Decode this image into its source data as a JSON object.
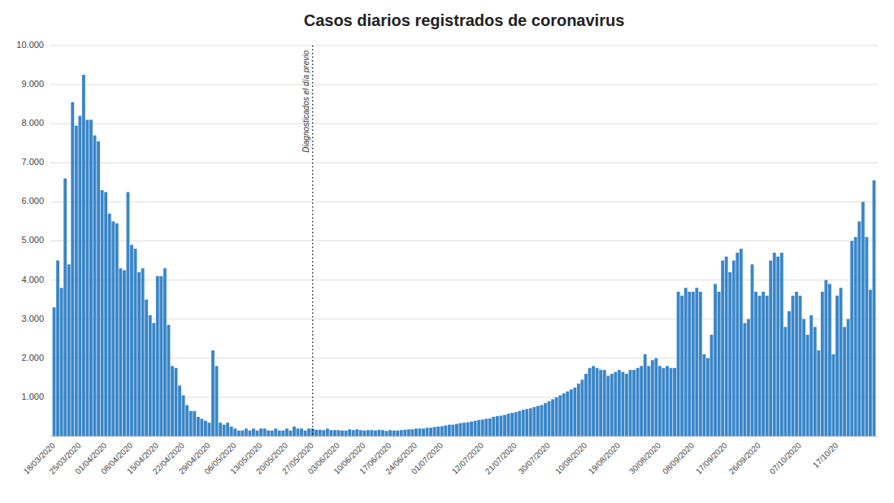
{
  "chart_data": {
    "type": "bar",
    "title": "Casos diarios registrados de coronavirus",
    "color": "#3a86c8",
    "grid": true,
    "ylim": [
      0,
      10000
    ],
    "yticks": [
      {
        "value": 1000,
        "label": "1.000"
      },
      {
        "value": 2000,
        "label": "2.000"
      },
      {
        "value": 3000,
        "label": "3.000"
      },
      {
        "value": 4000,
        "label": "4.000"
      },
      {
        "value": 5000,
        "label": "5.000"
      },
      {
        "value": 6000,
        "label": "6.000"
      },
      {
        "value": 7000,
        "label": "7.000"
      },
      {
        "value": 8000,
        "label": "8.000"
      },
      {
        "value": 9000,
        "label": "9.000"
      },
      {
        "value": 10000,
        "label": "10.000"
      }
    ],
    "annotations": [
      {
        "text": "Diagnosticados el día previo",
        "x": "27/05/2020"
      }
    ],
    "categories": [
      "18/03/2020",
      null,
      null,
      null,
      null,
      null,
      null,
      "25/03/2020",
      null,
      null,
      null,
      null,
      null,
      null,
      "01/04/2020",
      null,
      null,
      null,
      null,
      null,
      null,
      "08/04/2020",
      null,
      null,
      null,
      null,
      null,
      null,
      "15/04/2020",
      null,
      null,
      null,
      null,
      null,
      null,
      "22/04/2020",
      null,
      null,
      null,
      null,
      null,
      null,
      "29/04/2020",
      null,
      null,
      null,
      null,
      null,
      null,
      "06/05/2020",
      null,
      null,
      null,
      null,
      null,
      null,
      "13/05/2020",
      null,
      null,
      null,
      null,
      null,
      null,
      "20/05/2020",
      null,
      null,
      null,
      null,
      null,
      null,
      "27/05/2020",
      null,
      null,
      null,
      null,
      null,
      null,
      "03/06/2020",
      null,
      null,
      null,
      null,
      null,
      null,
      "10/06/2020",
      null,
      null,
      null,
      null,
      null,
      null,
      "17/06/2020",
      null,
      null,
      null,
      null,
      null,
      null,
      "24/06/2020",
      null,
      null,
      null,
      null,
      null,
      null,
      "01/07/2020",
      null,
      null,
      null,
      null,
      null,
      null,
      null,
      null,
      null,
      null,
      "12/07/2020",
      null,
      null,
      null,
      null,
      null,
      null,
      null,
      null,
      "21/07/2020",
      null,
      null,
      null,
      null,
      null,
      null,
      null,
      null,
      "30/07/2020",
      null,
      null,
      null,
      null,
      null,
      null,
      null,
      null,
      null,
      "10/08/2020",
      null,
      null,
      null,
      null,
      null,
      null,
      null,
      null,
      "19/08/2020",
      null,
      null,
      null,
      null,
      null,
      null,
      null,
      null,
      null,
      null,
      "30/08/2020",
      null,
      null,
      null,
      null,
      null,
      null,
      null,
      null,
      "08/09/2020",
      null,
      null,
      null,
      null,
      null,
      null,
      null,
      null,
      "17/09/2020",
      null,
      null,
      null,
      null,
      null,
      null,
      null,
      null,
      "26/09/2020",
      null,
      null,
      null,
      null,
      null,
      null,
      null,
      null,
      null,
      null,
      "07/10/2020",
      null,
      null,
      null,
      null,
      null,
      null,
      null,
      null,
      null,
      "17/10/20",
      null,
      null,
      null,
      null,
      null,
      null,
      null,
      null,
      null,
      null
    ],
    "values": [
      3300,
      4500,
      3800,
      6600,
      4400,
      8550,
      7950,
      8200,
      9250,
      8100,
      8100,
      7700,
      7550,
      6300,
      6250,
      5700,
      5500,
      5450,
      4300,
      4250,
      6250,
      4900,
      4800,
      4200,
      4300,
      3500,
      3100,
      2900,
      4100,
      4100,
      4300,
      2850,
      1800,
      1750,
      1300,
      1050,
      800,
      650,
      650,
      500,
      450,
      400,
      350,
      2200,
      1800,
      350,
      300,
      350,
      250,
      200,
      150,
      150,
      200,
      150,
      200,
      150,
      200,
      200,
      150,
      150,
      200,
      150,
      150,
      200,
      150,
      250,
      200,
      200,
      150,
      200,
      200,
      170,
      170,
      160,
      200,
      160,
      160,
      160,
      150,
      150,
      180,
      160,
      180,
      160,
      150,
      160,
      160,
      150,
      170,
      160,
      140,
      160,
      150,
      150,
      160,
      170,
      180,
      180,
      200,
      200,
      200,
      220,
      220,
      240,
      250,
      260,
      280,
      300,
      300,
      320,
      340,
      350,
      360,
      380,
      400,
      420,
      430,
      450,
      460,
      500,
      520,
      530,
      550,
      580,
      600,
      620,
      650,
      680,
      700,
      720,
      750,
      780,
      800,
      850,
      900,
      950,
      1000,
      1050,
      1100,
      1150,
      1200,
      1250,
      1350,
      1450,
      1600,
      1750,
      1800,
      1750,
      1700,
      1700,
      1550,
      1600,
      1650,
      1700,
      1650,
      1600,
      1700,
      1700,
      1750,
      1800,
      2100,
      1800,
      1950,
      2000,
      1800,
      1750,
      1800,
      1750,
      1750,
      3700,
      3600,
      3800,
      3700,
      3700,
      3800,
      3700,
      2100,
      2000,
      2600,
      3900,
      3700,
      4500,
      4600,
      4200,
      4500,
      4700,
      4800,
      2900,
      3000,
      4400,
      3700,
      3600,
      3700,
      3600,
      4500,
      4700,
      4600,
      4700,
      2800,
      3200,
      3600,
      3700,
      3600,
      3000,
      2600,
      3100,
      2800,
      2200,
      3700,
      4000,
      3900,
      2100,
      3600,
      3800,
      2800,
      3000,
      5000,
      5100,
      5500,
      6000,
      5100,
      3750,
      6550
    ]
  }
}
